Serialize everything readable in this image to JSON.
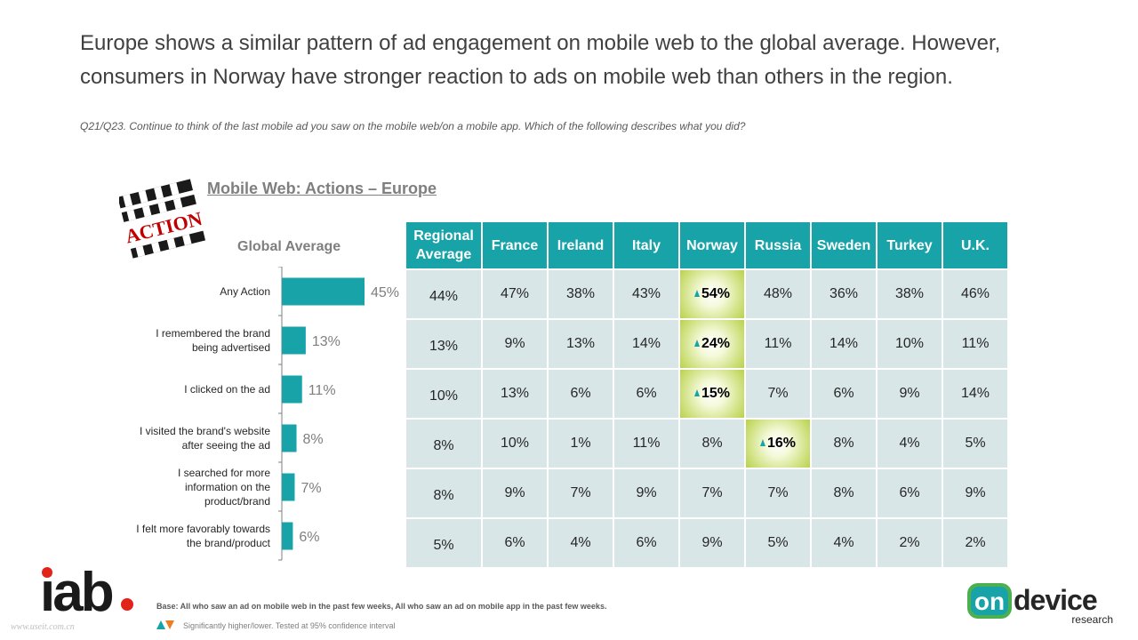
{
  "headline": "Europe shows a similar pattern of ad engagement on mobile web to the global average. However, consumers in Norway have stronger reaction to ads on mobile web than others in the region.",
  "question": "Q21/Q23. Continue to think of the last mobile ad you saw on the mobile web/on a mobile app. Which of the following describes what you did?",
  "chart_title": "Mobile Web: Actions –  Europe",
  "global_title": "Global Average",
  "clapper_text": "ACTION",
  "colors": {
    "teal": "#17a3a8",
    "cell": "#d9e6e8",
    "highlight": "#b8d24a",
    "orange": "#f07c22",
    "iab_red": "#e2231a"
  },
  "chart_data": {
    "type": "bar",
    "orientation": "horizontal",
    "title": "Global Average",
    "categories": [
      [
        "Any Action"
      ],
      [
        "I remembered the brand",
        "being advertised"
      ],
      [
        "I clicked on the ad"
      ],
      [
        "I visited the brand's website",
        "after seeing the ad"
      ],
      [
        "I searched for more",
        "information on the",
        "product/brand"
      ],
      [
        "I felt more favorably towards",
        "the brand/product"
      ]
    ],
    "values": [
      45,
      13,
      11,
      8,
      7,
      6
    ],
    "value_labels": [
      "45%",
      "13%",
      "11%",
      "8%",
      "7%",
      "6%"
    ],
    "xlim": [
      0,
      50
    ]
  },
  "table": {
    "columns": [
      [
        "Regional",
        "Average"
      ],
      [
        "France"
      ],
      [
        "Ireland"
      ],
      [
        "Italy"
      ],
      [
        "Norway"
      ],
      [
        "Russia"
      ],
      [
        "Sweden"
      ],
      [
        "Turkey"
      ],
      [
        "U.K."
      ]
    ],
    "rows": [
      [
        "44%",
        "47%",
        "38%",
        "43%",
        "54%",
        "48%",
        "36%",
        "38%",
        "46%"
      ],
      [
        "13%",
        "9%",
        "13%",
        "14%",
        "24%",
        "11%",
        "14%",
        "10%",
        "11%"
      ],
      [
        "10%",
        "13%",
        "6%",
        "6%",
        "15%",
        "7%",
        "6%",
        "9%",
        "14%"
      ],
      [
        "8%",
        "10%",
        "1%",
        "11%",
        "8%",
        "16%",
        "8%",
        "4%",
        "5%"
      ],
      [
        "8%",
        "9%",
        "7%",
        "9%",
        "7%",
        "7%",
        "8%",
        "6%",
        "9%"
      ],
      [
        "5%",
        "6%",
        "4%",
        "6%",
        "9%",
        "5%",
        "4%",
        "2%",
        "2%"
      ]
    ],
    "significant_higher": [
      [
        0,
        4
      ],
      [
        1,
        4
      ],
      [
        2,
        4
      ],
      [
        3,
        5
      ]
    ]
  },
  "footer": {
    "base": "Base: All who saw an ad on mobile web in the past few weeks, All who saw an ad on mobile app in the past few weeks.",
    "legend": "Significantly higher/lower. Tested at 95% confidence interval",
    "watermark": "www.useit.com.cn",
    "iab_logo": "iab",
    "ondevice_logo_1": "on",
    "ondevice_logo_2": "device",
    "ondevice_logo_3": "research"
  }
}
